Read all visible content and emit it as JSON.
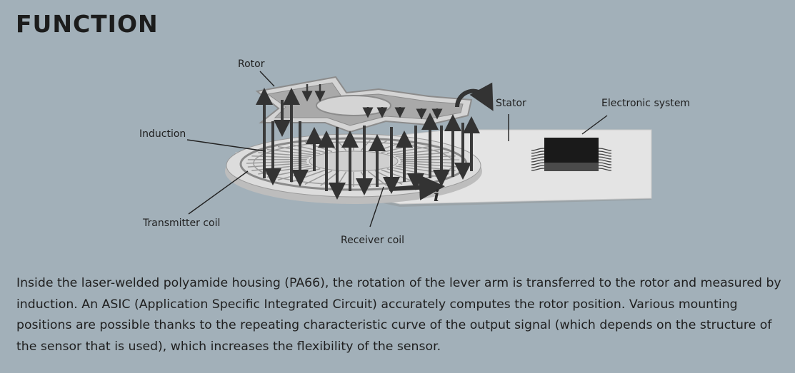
{
  "heading": "FUNCTION",
  "labels": {
    "rotor": "Rotor",
    "stator": "Stator",
    "electronic_system": "Electronic system",
    "induction": "Induction",
    "transmitter_coil": "Transmitter coil",
    "receiver_coil": "Receiver coil",
    "current_symbol": "i"
  },
  "description": "Inside the laser-welded polyamide housing (PA66), the rotation of the lever arm is transferred to the rotor and measured by induction. An ASIC (Application Specific Integrated Circuit) accurately computes the rotor position. Various mounting positions are possible thanks to the repeating characteristic curve of the output signal (which depends on the structure of the sensor that is used), which increases the flexibility of the sensor.",
  "colors": {
    "background": "#a2b0b9",
    "board": "#e6e6e6",
    "arrow": "#3a3a3a",
    "chip": "#1a1a1a"
  }
}
